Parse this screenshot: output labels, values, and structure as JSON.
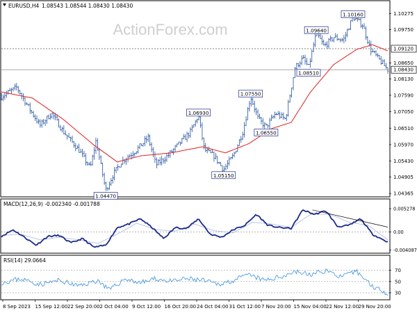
{
  "header": {
    "symbol": "EURUSD,H4",
    "ohlc": "1.08543 1.08544 1.08430 1.08430"
  },
  "watermark": "ActionForex.com",
  "colors": {
    "price_line": "#1f4e9c",
    "ma_line": "#e02020",
    "macd_line": "#1a2a8c",
    "signal_line": "#aab8e0",
    "rsi_line": "#3a8fe0",
    "trendline": "#000000",
    "label_border": "#1a2a8c"
  },
  "main_panel": {
    "y_ticks": [
      "1.10275",
      "1.09750",
      "1.08650",
      "1.08130",
      "1.07590",
      "1.07050",
      "1.06510",
      "1.05970",
      "1.05430",
      "1.04905",
      "1.04365"
    ],
    "hline_label": "1.09120",
    "price_label": "1.08430"
  },
  "annotations": [
    "1.10160",
    "1.09640",
    "1.08510",
    "1.07550",
    "1.06930",
    "1.06550",
    "1.05150",
    "1.04470"
  ],
  "macd_panel": {
    "title": "MACD(12,26,9) -0.002340 -0.001788",
    "y_ticks": [
      "0.005278",
      "0.00",
      "-0.004087"
    ]
  },
  "rsi_panel": {
    "title": "RSI(14) 29.0664",
    "y_ticks": [
      "70",
      "50",
      "30"
    ]
  },
  "x_axis": {
    "labels": [
      "8 Sep 2023",
      "15 Sep 12:00",
      "22 Sep 20:00",
      "2 Oct 04:00",
      "9 Oct 12:00",
      "16 Oct 20:00",
      "24 Oct 04:00",
      "31 Oct 12:00",
      "7 Nov 20:00",
      "15 Nov 04:00",
      "22 Nov 12:00",
      "29 Nov 20:00"
    ]
  },
  "chart_data": {
    "type": "line",
    "price_key_points": [
      {
        "t": 0,
        "v": 1.0755
      },
      {
        "t": 0.04,
        "v": 1.0785
      },
      {
        "t": 0.07,
        "v": 1.072
      },
      {
        "t": 0.1,
        "v": 1.066
      },
      {
        "t": 0.13,
        "v": 1.07
      },
      {
        "t": 0.16,
        "v": 1.064
      },
      {
        "t": 0.2,
        "v": 1.058
      },
      {
        "t": 0.23,
        "v": 1.052
      },
      {
        "t": 0.245,
        "v": 1.061
      },
      {
        "t": 0.27,
        "v": 1.0447
      },
      {
        "t": 0.29,
        "v": 1.05
      },
      {
        "t": 0.31,
        "v": 1.054
      },
      {
        "t": 0.35,
        "v": 1.058
      },
      {
        "t": 0.38,
        "v": 1.062
      },
      {
        "t": 0.4,
        "v": 1.053
      },
      {
        "t": 0.43,
        "v": 1.056
      },
      {
        "t": 0.46,
        "v": 1.06
      },
      {
        "t": 0.49,
        "v": 1.064
      },
      {
        "t": 0.51,
        "v": 1.0693
      },
      {
        "t": 0.525,
        "v": 1.058
      },
      {
        "t": 0.55,
        "v": 1.056
      },
      {
        "t": 0.575,
        "v": 1.0515
      },
      {
        "t": 0.6,
        "v": 1.056
      },
      {
        "t": 0.625,
        "v": 1.064
      },
      {
        "t": 0.645,
        "v": 1.0755
      },
      {
        "t": 0.665,
        "v": 1.068
      },
      {
        "t": 0.685,
        "v": 1.0655
      },
      {
        "t": 0.71,
        "v": 1.07
      },
      {
        "t": 0.735,
        "v": 1.068
      },
      {
        "t": 0.76,
        "v": 1.085
      },
      {
        "t": 0.78,
        "v": 1.088
      },
      {
        "t": 0.795,
        "v": 1.0851
      },
      {
        "t": 0.815,
        "v": 1.0964
      },
      {
        "t": 0.835,
        "v": 1.092
      },
      {
        "t": 0.86,
        "v": 1.095
      },
      {
        "t": 0.885,
        "v": 1.094
      },
      {
        "t": 0.91,
        "v": 1.1016
      },
      {
        "t": 0.935,
        "v": 1.099
      },
      {
        "t": 0.955,
        "v": 1.091
      },
      {
        "t": 0.975,
        "v": 1.088
      },
      {
        "t": 1.0,
        "v": 1.0843
      }
    ],
    "ma_key_points": [
      {
        "t": 0,
        "v": 1.077
      },
      {
        "t": 0.08,
        "v": 1.075
      },
      {
        "t": 0.16,
        "v": 1.068
      },
      {
        "t": 0.24,
        "v": 1.0595
      },
      {
        "t": 0.3,
        "v": 1.054
      },
      {
        "t": 0.36,
        "v": 1.056
      },
      {
        "t": 0.44,
        "v": 1.057
      },
      {
        "t": 0.52,
        "v": 1.059
      },
      {
        "t": 0.58,
        "v": 1.057
      },
      {
        "t": 0.64,
        "v": 1.06
      },
      {
        "t": 0.7,
        "v": 1.065
      },
      {
        "t": 0.75,
        "v": 1.067
      },
      {
        "t": 0.8,
        "v": 1.077
      },
      {
        "t": 0.86,
        "v": 1.086
      },
      {
        "t": 0.92,
        "v": 1.091
      },
      {
        "t": 0.96,
        "v": 1.0925
      },
      {
        "t": 1.0,
        "v": 1.0905
      }
    ],
    "macd_key_points": [
      {
        "t": 0,
        "v": -0.001
      },
      {
        "t": 0.03,
        "v": 0.0005
      },
      {
        "t": 0.06,
        "v": -0.0012
      },
      {
        "t": 0.09,
        "v": -0.003
      },
      {
        "t": 0.12,
        "v": -0.001
      },
      {
        "t": 0.15,
        "v": -0.0008
      },
      {
        "t": 0.18,
        "v": -0.0025
      },
      {
        "t": 0.21,
        "v": -0.0015
      },
      {
        "t": 0.24,
        "v": -0.0035
      },
      {
        "t": 0.27,
        "v": -0.003
      },
      {
        "t": 0.3,
        "v": 0.001
      },
      {
        "t": 0.33,
        "v": 0.0018
      },
      {
        "t": 0.36,
        "v": 0.003
      },
      {
        "t": 0.39,
        "v": 0.001
      },
      {
        "t": 0.42,
        "v": -0.0015
      },
      {
        "t": 0.45,
        "v": 0.001
      },
      {
        "t": 0.48,
        "v": 0.0008
      },
      {
        "t": 0.51,
        "v": 0.003
      },
      {
        "t": 0.54,
        "v": -0.0005
      },
      {
        "t": 0.57,
        "v": -0.0012
      },
      {
        "t": 0.6,
        "v": 0.0005
      },
      {
        "t": 0.63,
        "v": 0.0015
      },
      {
        "t": 0.66,
        "v": 0.004
      },
      {
        "t": 0.69,
        "v": 0.0015
      },
      {
        "t": 0.72,
        "v": 0.001
      },
      {
        "t": 0.75,
        "v": 0.0008
      },
      {
        "t": 0.78,
        "v": 0.005
      },
      {
        "t": 0.81,
        "v": 0.004
      },
      {
        "t": 0.84,
        "v": 0.0048
      },
      {
        "t": 0.87,
        "v": 0.0012
      },
      {
        "t": 0.9,
        "v": 0.0015
      },
      {
        "t": 0.93,
        "v": 0.003
      },
      {
        "t": 0.96,
        "v": -0.0005
      },
      {
        "t": 1.0,
        "v": -0.0023
      }
    ],
    "signal_key_points": [
      {
        "t": 0,
        "v": -0.0008
      },
      {
        "t": 0.05,
        "v": -0.0005
      },
      {
        "t": 0.1,
        "v": -0.0018
      },
      {
        "t": 0.15,
        "v": -0.0012
      },
      {
        "t": 0.2,
        "v": -0.0018
      },
      {
        "t": 0.25,
        "v": -0.0026
      },
      {
        "t": 0.3,
        "v": -0.0005
      },
      {
        "t": 0.35,
        "v": 0.002
      },
      {
        "t": 0.4,
        "v": 0.0005
      },
      {
        "t": 0.45,
        "v": 0.0002
      },
      {
        "t": 0.5,
        "v": 0.0018
      },
      {
        "t": 0.55,
        "v": 0.0003
      },
      {
        "t": 0.6,
        "v": -0.0002
      },
      {
        "t": 0.65,
        "v": 0.0022
      },
      {
        "t": 0.7,
        "v": 0.0018
      },
      {
        "t": 0.75,
        "v": 0.001
      },
      {
        "t": 0.8,
        "v": 0.004
      },
      {
        "t": 0.85,
        "v": 0.004
      },
      {
        "t": 0.9,
        "v": 0.0022
      },
      {
        "t": 0.95,
        "v": 0.0015
      },
      {
        "t": 1.0,
        "v": -0.0018
      }
    ],
    "rsi_key_points": [
      {
        "t": 0,
        "v": 48
      },
      {
        "t": 0.05,
        "v": 55
      },
      {
        "t": 0.1,
        "v": 45
      },
      {
        "t": 0.15,
        "v": 52
      },
      {
        "t": 0.2,
        "v": 42
      },
      {
        "t": 0.25,
        "v": 52
      },
      {
        "t": 0.28,
        "v": 35
      },
      {
        "t": 0.32,
        "v": 55
      },
      {
        "t": 0.36,
        "v": 48
      },
      {
        "t": 0.4,
        "v": 55
      },
      {
        "t": 0.44,
        "v": 50
      },
      {
        "t": 0.48,
        "v": 55
      },
      {
        "t": 0.52,
        "v": 52
      },
      {
        "t": 0.56,
        "v": 45
      },
      {
        "t": 0.6,
        "v": 52
      },
      {
        "t": 0.64,
        "v": 62
      },
      {
        "t": 0.68,
        "v": 52
      },
      {
        "t": 0.72,
        "v": 58
      },
      {
        "t": 0.76,
        "v": 68
      },
      {
        "t": 0.8,
        "v": 62
      },
      {
        "t": 0.84,
        "v": 70
      },
      {
        "t": 0.88,
        "v": 58
      },
      {
        "t": 0.92,
        "v": 68
      },
      {
        "t": 0.96,
        "v": 42
      },
      {
        "t": 1.0,
        "v": 29
      }
    ],
    "trendline": [
      {
        "t": 0.805,
        "v": 0.005
      },
      {
        "t": 1.0,
        "v": 0.0011
      }
    ],
    "price_range": [
      1.043,
      1.104
    ],
    "macd_range": [
      -0.0045,
      0.0056
    ],
    "rsi_range": [
      20,
      82
    ]
  }
}
